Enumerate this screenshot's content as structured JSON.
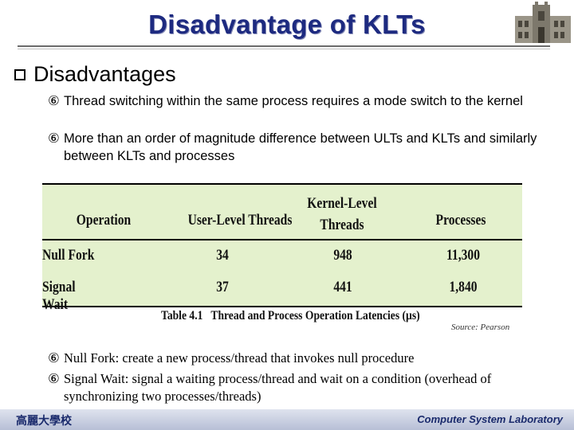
{
  "slide": {
    "title": "Disadvantage of KLTs",
    "heading": "Disadvantages",
    "bullet_glyph": "⑥",
    "bullets": [
      "Thread switching within the same process requires a mode switch to the kernel",
      "More than an order of magnitude difference between ULTs and KLTs and similarly between KLTs and processes"
    ]
  },
  "table": {
    "headers": [
      "Operation",
      "User-Level Threads",
      "Kernel-Level Threads",
      "Processes"
    ],
    "rows": [
      [
        "Null Fork",
        "34",
        "948",
        "11,300"
      ],
      [
        "Signal Wait",
        "37",
        "441",
        "1,840"
      ]
    ],
    "caption_label": "Table 4.1",
    "caption_text": "Thread and Process Operation Latencies (µs)",
    "source": "Source: Pearson"
  },
  "notes": [
    "Null Fork: create a new process/thread that invokes null procedure",
    "Signal Wait: signal a waiting process/thread and wait on a condition (overhead of synchronizing two processes/threads)"
  ],
  "footer": {
    "left": "高麗大學校",
    "right": "Computer System Laboratory"
  },
  "colors": {
    "title": "#1d2a80",
    "table_bg": "#e4f1cd"
  }
}
